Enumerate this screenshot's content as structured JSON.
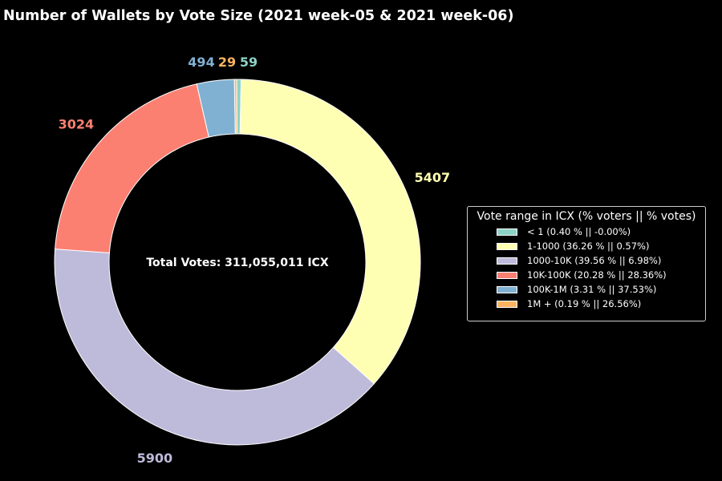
{
  "chart_data": {
    "type": "pie",
    "variant": "donut",
    "title": "Number of Wallets by Vote Size (2021 week-05 & 2021 week-06)",
    "center_text": "Total Votes: 311,055,011 ICX",
    "legend_title": "Vote range in ICX (% voters || % votes)",
    "legend_position": "right",
    "slices": [
      {
        "category": "< 1",
        "value": 59,
        "label": "59",
        "legend": "< 1 (0.40 % || -0.00%)",
        "color": "#8dd3c7"
      },
      {
        "category": "1-1000",
        "value": 5407,
        "label": "5407",
        "legend": "1-1000 (36.26 % || 0.57%)",
        "color": "#ffffb3"
      },
      {
        "category": "1000-10K",
        "value": 5900,
        "label": "5900",
        "legend": "1000-10K (39.56 % || 6.98%)",
        "color": "#bebada"
      },
      {
        "category": "10K-100K",
        "value": 3024,
        "label": "3024",
        "legend": "10K-100K (20.28 % || 28.36%)",
        "color": "#fb8072"
      },
      {
        "category": "100K-1M",
        "value": 494,
        "label": "494",
        "legend": "100K-1M (3.31 % || 37.53%)",
        "color": "#80b1d3"
      },
      {
        "category": "1M +",
        "value": 29,
        "label": "29",
        "legend": "1M + (0.19 % || 26.56%)",
        "color": "#fdb462"
      }
    ]
  }
}
